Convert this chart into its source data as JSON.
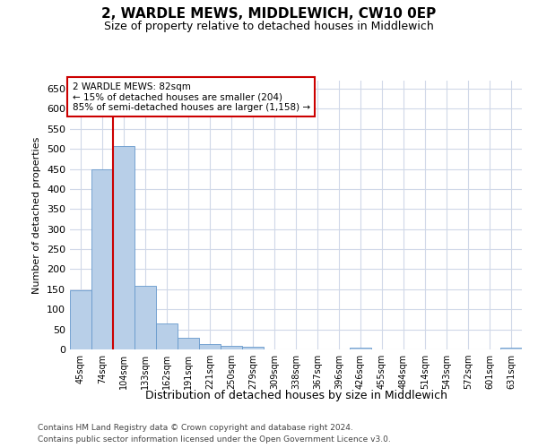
{
  "title": "2, WARDLE MEWS, MIDDLEWICH, CW10 0EP",
  "subtitle": "Size of property relative to detached houses in Middlewich",
  "xlabel": "Distribution of detached houses by size in Middlewich",
  "ylabel": "Number of detached properties",
  "footer_line1": "Contains HM Land Registry data © Crown copyright and database right 2024.",
  "footer_line2": "Contains public sector information licensed under the Open Government Licence v3.0.",
  "annotation_line1": "2 WARDLE MEWS: 82sqm",
  "annotation_line2": "← 15% of detached houses are smaller (204)",
  "annotation_line3": "85% of semi-detached houses are larger (1,158) →",
  "bar_color": "#b8cfe8",
  "bar_edge_color": "#6699cc",
  "red_line_color": "#cc0000",
  "annotation_box_color": "#ffffff",
  "annotation_box_edge": "#cc0000",
  "background_color": "#ffffff",
  "grid_color": "#d0d8e8",
  "categories": [
    "45sqm",
    "74sqm",
    "104sqm",
    "133sqm",
    "162sqm",
    "191sqm",
    "221sqm",
    "250sqm",
    "279sqm",
    "309sqm",
    "338sqm",
    "367sqm",
    "396sqm",
    "426sqm",
    "455sqm",
    "484sqm",
    "514sqm",
    "543sqm",
    "572sqm",
    "601sqm",
    "631sqm"
  ],
  "values": [
    148,
    450,
    507,
    158,
    65,
    30,
    14,
    9,
    6,
    0,
    0,
    0,
    0,
    5,
    0,
    0,
    0,
    0,
    0,
    0,
    5
  ],
  "ylim": [
    0,
    670
  ],
  "yticks": [
    0,
    50,
    100,
    150,
    200,
    250,
    300,
    350,
    400,
    450,
    500,
    550,
    600,
    650
  ],
  "red_line_bin": 1.5
}
